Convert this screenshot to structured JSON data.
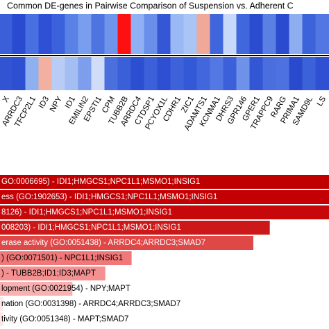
{
  "chart_data": [
    {
      "type": "heatmap",
      "title": "Common DE-genes in Pairwise Comparison of Suspension vs. Adherent C",
      "columns": [
        "X",
        "ARRDC3",
        "TFCP2L1",
        "ID3",
        "NPY",
        "ID1",
        "EMILIN2",
        "EPSTI1",
        "CPM",
        "TUBB2B",
        "ARRDC4",
        "CTDSP1",
        "PCYOX1L",
        "CDHR1",
        "ZIC1",
        "ADAMTS1",
        "KCNMA1",
        "DHRS3",
        "GPR146",
        "GPER1",
        "TRAPPC9",
        "RARG",
        "PRIMA1",
        "SAMD9L",
        "LS"
      ],
      "cell_colors": [
        [
          "#3a5fd9",
          "#2a4bd0",
          "#4a6fe0",
          "#2f50d4",
          "#3b62dc",
          "#5a82e6",
          "#7a9eef",
          "#4e74e0",
          "#6f94ec",
          "#ff1010",
          "#8fb0f2",
          "#6a8fe9",
          "#3557d6",
          "#9ab8f3",
          "#aac4f5",
          "#f0a898",
          "#3f66dc",
          "#c8d8f8",
          "#4068dc",
          "#2c4ccf",
          "#5a80e4",
          "#2b4bce",
          "#8eaef0",
          "#3d63da",
          "#5276e2"
        ],
        [
          "#3254d3",
          "#2d4fd1",
          "#8fb0f0",
          "#f3b0a0",
          "#b8ccf5",
          "#a4bef3",
          "#7c9eec",
          "#d0dcf8",
          "#4b70de",
          "#3a5fd8",
          "#2c4ed0",
          "#3b60da",
          "#2e4fd2",
          "#3e62da",
          "#3459d6",
          "#4267dc",
          "#5478e3",
          "#3c60d9",
          "#6e92ea",
          "#3356d5",
          "#4a6ede",
          "#4d72df",
          "#2a4ace",
          "#3c62da",
          "#2f50d2"
        ]
      ]
    },
    {
      "type": "barh",
      "categories": [
        "GO:0006695) - IDI1;HMGCS1;NPC1L1;MSMO1;INSIG1",
        "ess (GO:1902653) - IDI1;HMGCS1;NPC1L1;MSMO1;INSIG1",
        "8126) - IDI1;HMGCS1;NPC1L1;MSMO1;INSIG1",
        "008203) - IDI1;HMGCS1;NPC1L1;MSMO1;INSIG1",
        "erase activity (GO:0051438) - ARRDC4;ARRDC3;SMAD7",
        ") (GO:0071501) - NPC1L1;INSIG1",
        ") - TUBB2B;ID1;ID3;MAPT",
        "lopment (GO:0021954) - NPY;MAPT",
        "nation (GO:0031398) - ARRDC4;ARRDC3;SMAD7",
        "tivity (GO:0051348) - MAPT;SMAD7"
      ],
      "values": [
        100,
        100,
        100,
        82,
        77,
        40,
        32,
        22,
        1,
        1
      ],
      "colors": [
        "#c00000",
        "#c40004",
        "#c6080a",
        "#cc1818",
        "#e04848",
        "#f07878",
        "#f49090",
        "#f8b0b0",
        "#fde8e8",
        "#fde8e8"
      ],
      "text_colors": [
        "#ffffff",
        "#ffffff",
        "#ffffff",
        "#ffffff",
        "#ffffff",
        "#000000",
        "#000000",
        "#000000",
        "#000000",
        "#000000"
      ]
    }
  ]
}
